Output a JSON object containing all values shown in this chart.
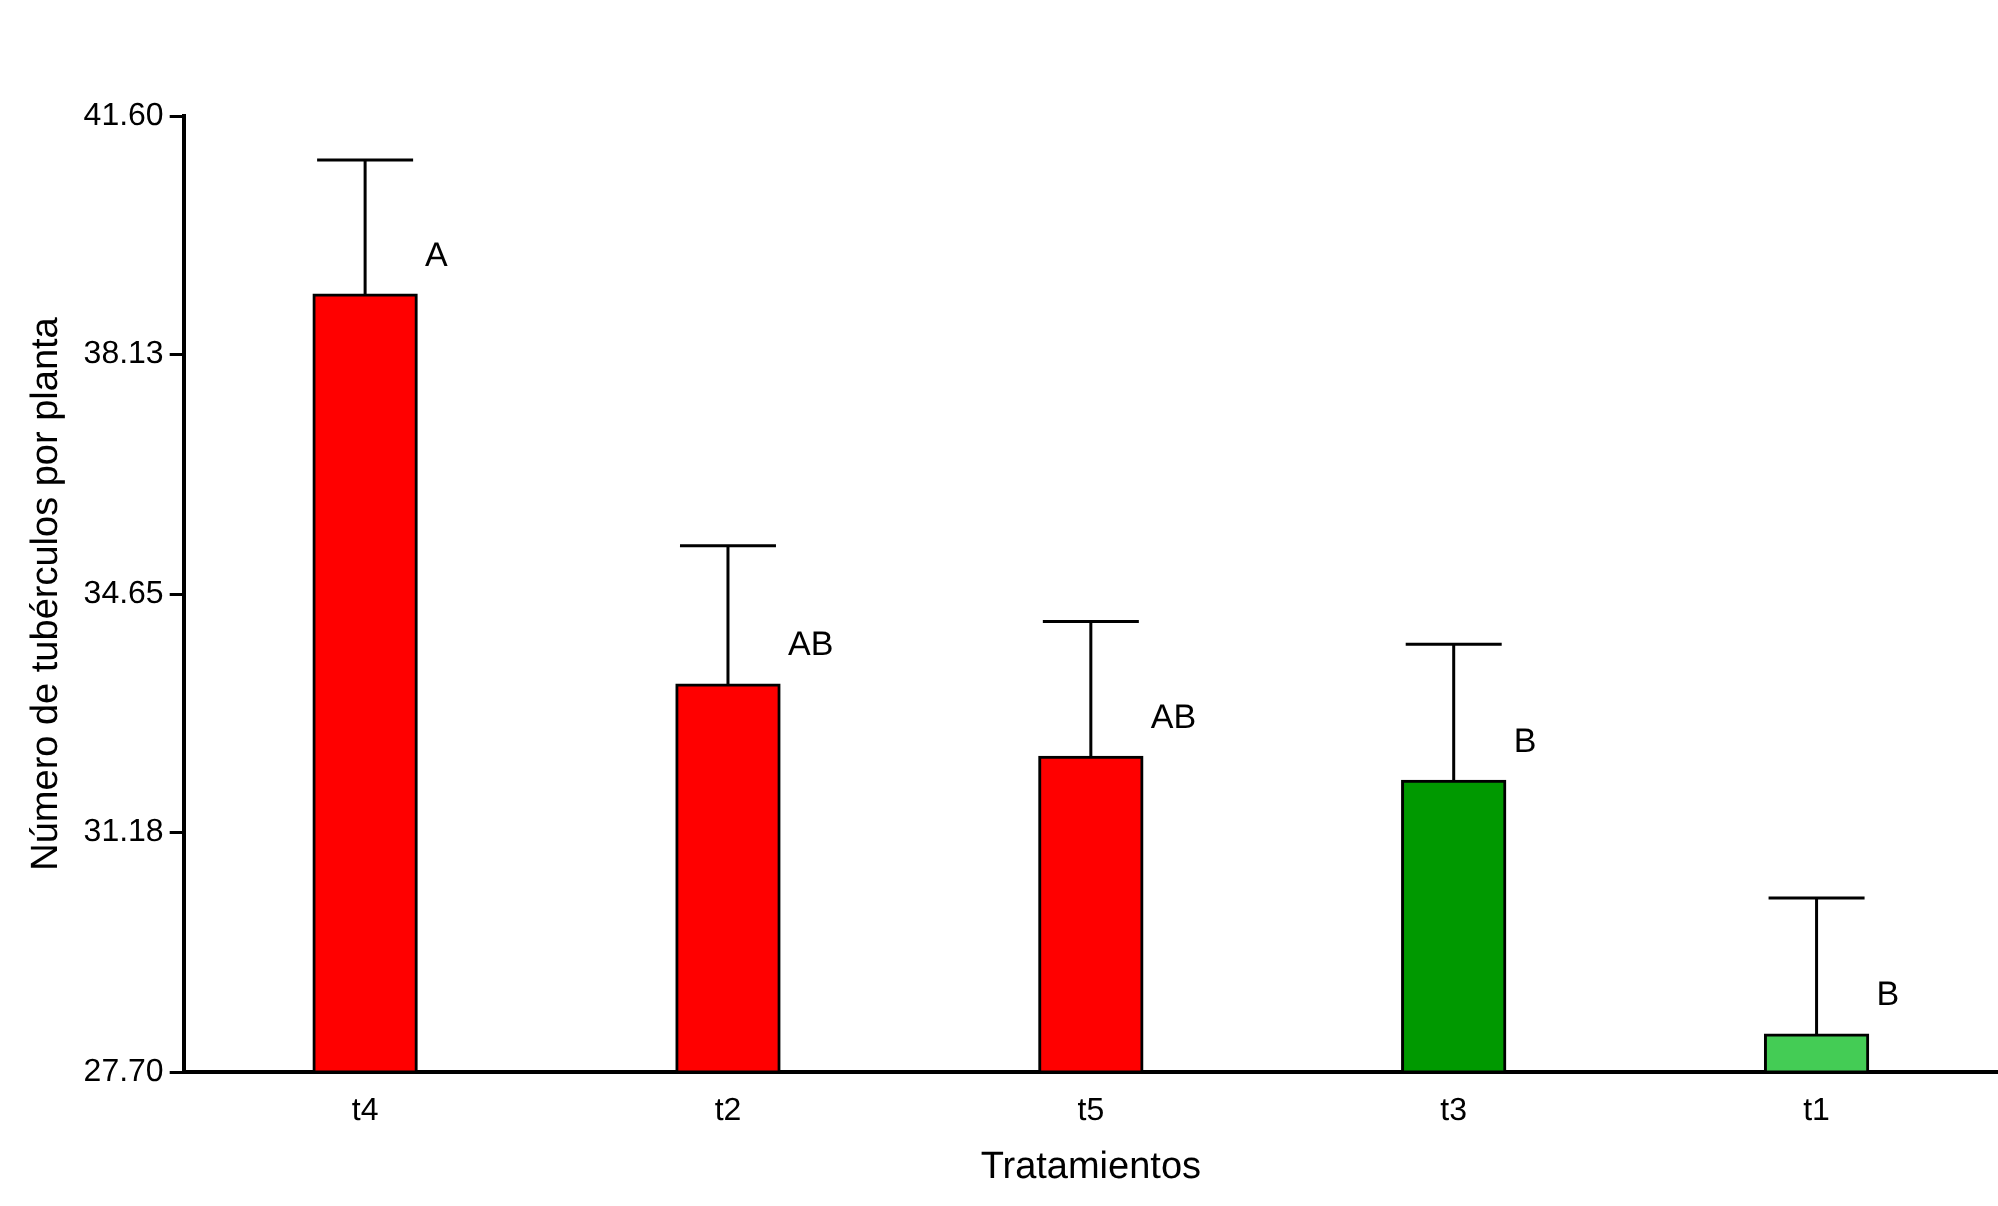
{
  "chart_data": {
    "type": "bar",
    "xlabel": "Tratamientos",
    "ylabel": "Número de tubérculos por planta",
    "categories": [
      "t4",
      "t2",
      "t5",
      "t3",
      "t1"
    ],
    "values": [
      39.01,
      33.34,
      32.29,
      31.94,
      28.25
    ],
    "colors": [
      "#ff0000",
      "#ff0000",
      "#ff0000",
      "#009900",
      "#44cc55"
    ],
    "errors": [
      [
        39.01,
        40.96
      ],
      [
        33.34,
        35.35
      ],
      [
        32.29,
        34.25
      ],
      [
        31.94,
        33.92
      ],
      [
        28.25,
        30.23
      ]
    ],
    "ylim": [
      27.7,
      41.6
    ],
    "yticks": [
      {
        "value": 27.7,
        "label": "27.70"
      },
      {
        "value": 31.18,
        "label": "31.18"
      },
      {
        "value": 34.65,
        "label": "34.65"
      },
      {
        "value": 38.13,
        "label": "38.13"
      },
      {
        "value": 41.6,
        "label": "41.60"
      }
    ],
    "grid": false,
    "legend": false,
    "annotations": [
      "A",
      "AB",
      "AB",
      "B",
      "B"
    ]
  }
}
